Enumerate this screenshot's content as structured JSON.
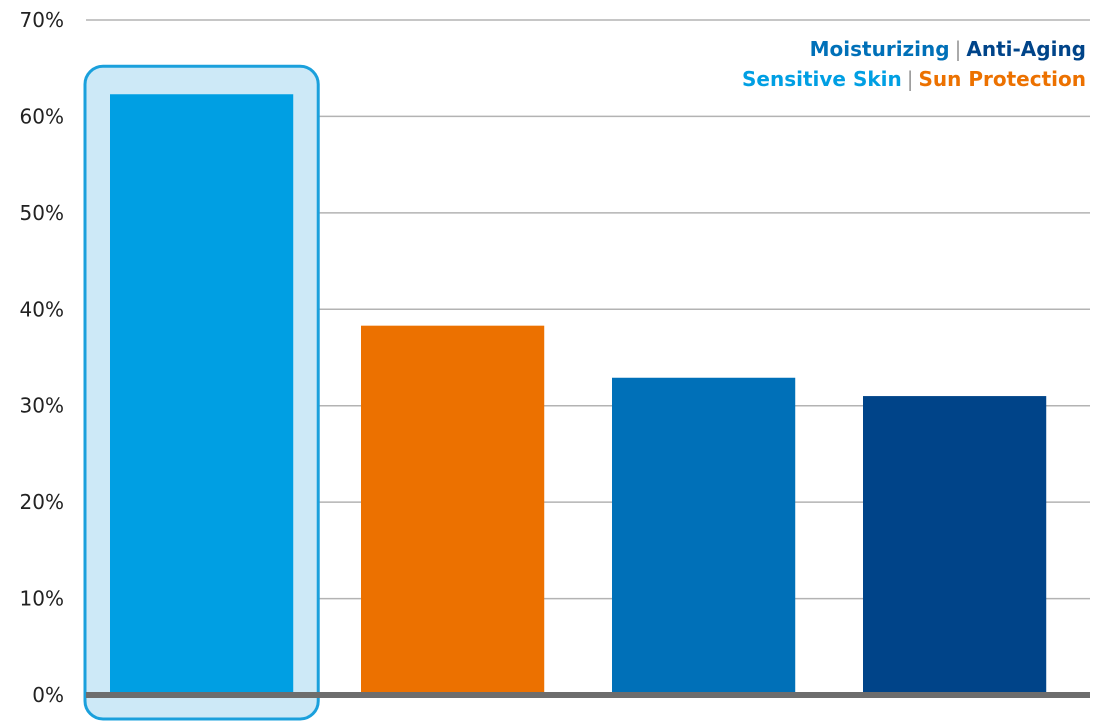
{
  "chart_data": {
    "type": "bar",
    "categories": [
      "Sensitive Skin",
      "Sun Protection",
      "Moisturizing",
      "Anti-Aging"
    ],
    "values": [
      62.3,
      38.3,
      32.9,
      31.0
    ],
    "colors": [
      "#009fe3",
      "#ec7100",
      "#0070b8",
      "#004489"
    ],
    "highlighted_category": "Sensitive Skin",
    "highlight_color": "#cde9f7",
    "highlight_border_color": "#1aa0dc",
    "ylim": [
      0,
      70
    ],
    "yticks": [
      0,
      10,
      20,
      30,
      40,
      50,
      60,
      70
    ],
    "ytick_labels": [
      "0%",
      "10%",
      "20%",
      "30%",
      "40%",
      "50%",
      "60%",
      "70%"
    ],
    "grid": true,
    "title": "",
    "xlabel": "",
    "ylabel": "",
    "legend": {
      "placement": "top-right",
      "rows": [
        [
          {
            "label": "Moisturizing",
            "color": "#0070b8"
          },
          {
            "label": "Anti-Aging",
            "color": "#004489"
          }
        ],
        [
          {
            "label": "Sensitive Skin",
            "color": "#009fe3"
          },
          {
            "label": "Sun Protection",
            "color": "#ec7100"
          }
        ]
      ],
      "separator": "|"
    }
  }
}
